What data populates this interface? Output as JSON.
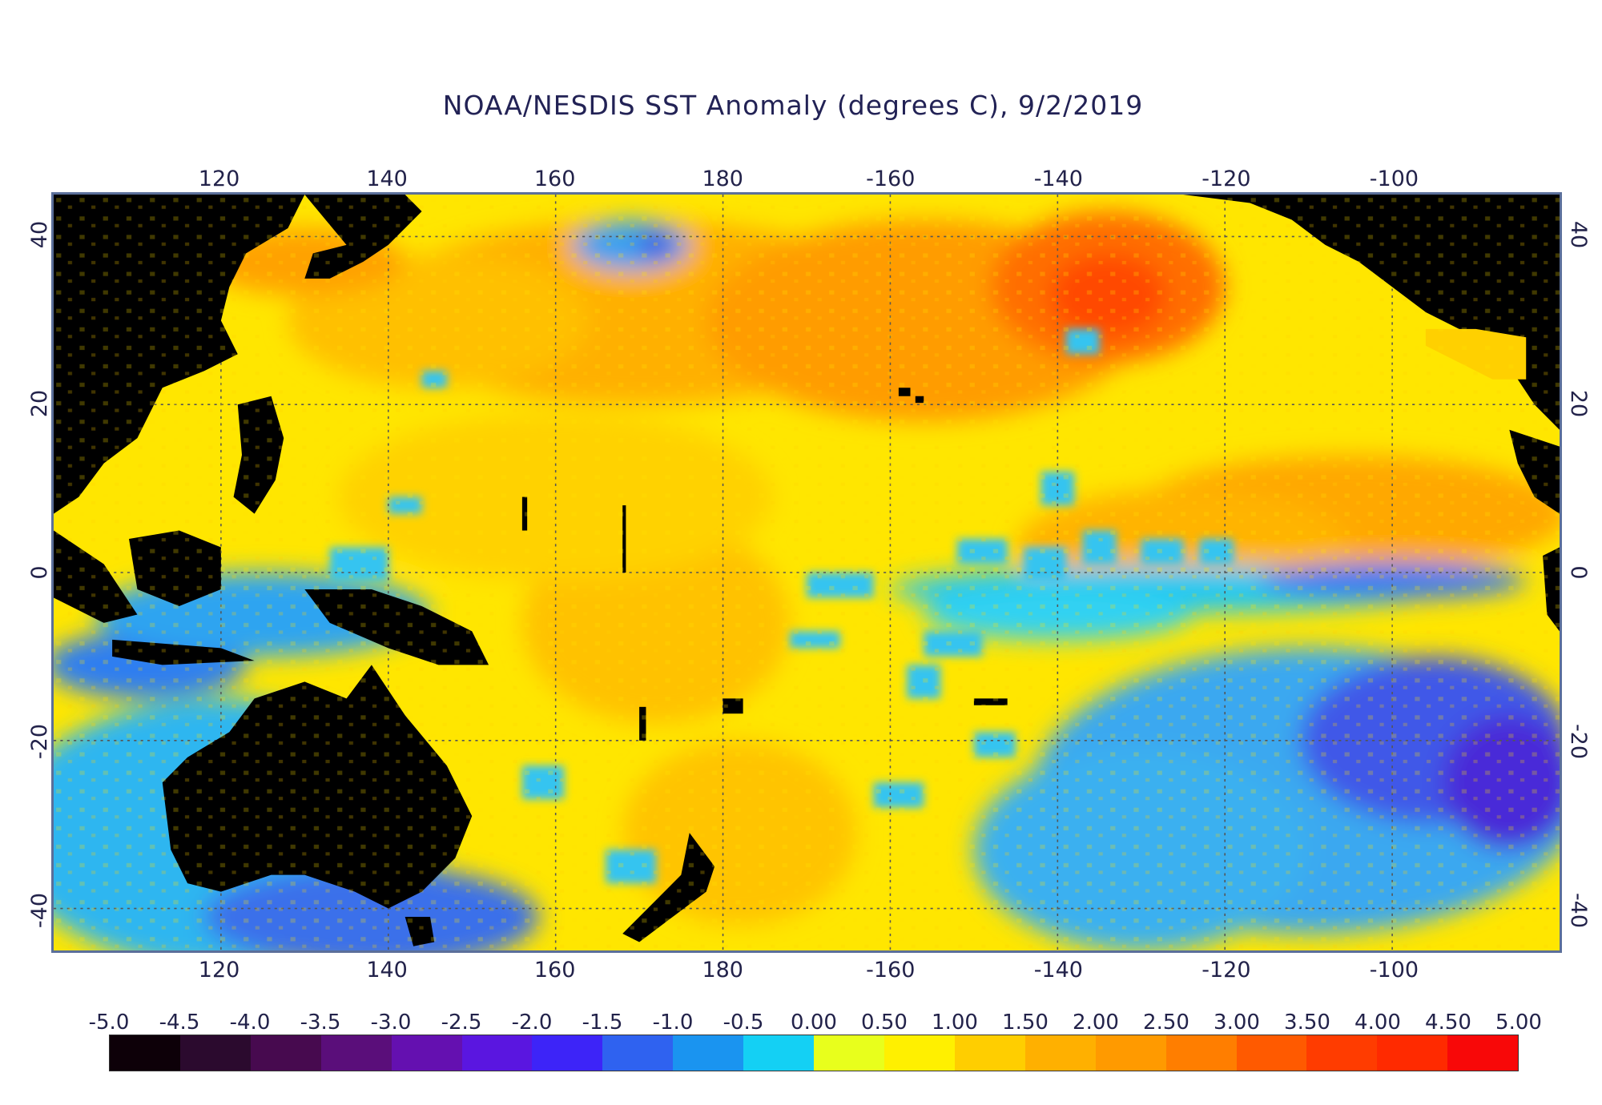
{
  "title": "NOAA/NESDIS SST Anomaly (degrees C), 9/2/2019",
  "map": {
    "projection": "equirectangular",
    "lon_range_deg_east": [
      100,
      280
    ],
    "lat_range": [
      -45,
      45
    ],
    "grid": true,
    "land_color": "#000000"
  },
  "axes": {
    "lon_ticks": [
      "120",
      "140",
      "160",
      "180",
      "-160",
      "-140",
      "-120",
      "-100"
    ],
    "lon_tick_values_deg_east": [
      120,
      140,
      160,
      180,
      200,
      220,
      240,
      260
    ],
    "lat_ticks": [
      "40",
      "20",
      "0",
      "-20",
      "-40"
    ],
    "lat_tick_values": [
      40,
      20,
      0,
      -20,
      -40
    ]
  },
  "colorbar": {
    "labels": [
      "-5.0",
      "-4.5",
      "-4.0",
      "-3.5",
      "-3.0",
      "-2.5",
      "-2.0",
      "-1.5",
      "-1.0",
      "-0.5",
      "0.00",
      "0.50",
      "1.00",
      "1.50",
      "2.00",
      "2.50",
      "3.00",
      "3.50",
      "4.00",
      "4.50",
      "5.00"
    ],
    "colors": [
      "#0d0008",
      "#2b0a2e",
      "#470a4f",
      "#5a0e7a",
      "#6410b0",
      "#5a16e0",
      "#3d24f8",
      "#2f62f0",
      "#1a94f0",
      "#14d0f4",
      "#e8ff1c",
      "#fff000",
      "#ffce00",
      "#ffb000",
      "#ff9a00",
      "#ff7e00",
      "#ff5a00",
      "#ff3c00",
      "#ff2a00",
      "#f80808"
    ]
  }
}
